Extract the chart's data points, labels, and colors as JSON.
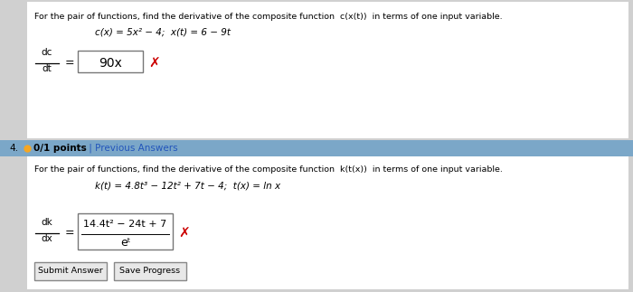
{
  "bg_color": "#d0d0d0",
  "white": "#ffffff",
  "header_bg": "#7ba7c8",
  "section1_text": "For the pair of functions, find the derivative of the composite function  c(x(t))  in terms of one input variable.",
  "section1_formula": "c(x) = 5x² − 4;  x(t) = 6 − 9t",
  "section1_answer": "90x",
  "section2_text": "For the pair of functions, find the derivative of the composite function  k(t(x))  in terms of one input variable.",
  "section2_formula": "k(t) = 4.8t³ − 12t² + 7t − 4;  t(x) = ln x",
  "section2_answer_num": "14.4t² − 24t + 7",
  "section2_answer_den": "eᵗ",
  "btn1": "Submit Answer",
  "btn2": "Save Progress",
  "red_x": "✗",
  "red_color": "#cc0000",
  "black": "#000000",
  "header_num": "4.",
  "header_pts": "0/1 points",
  "header_link": " | Previous Answers",
  "dot_color": "#f5a623"
}
